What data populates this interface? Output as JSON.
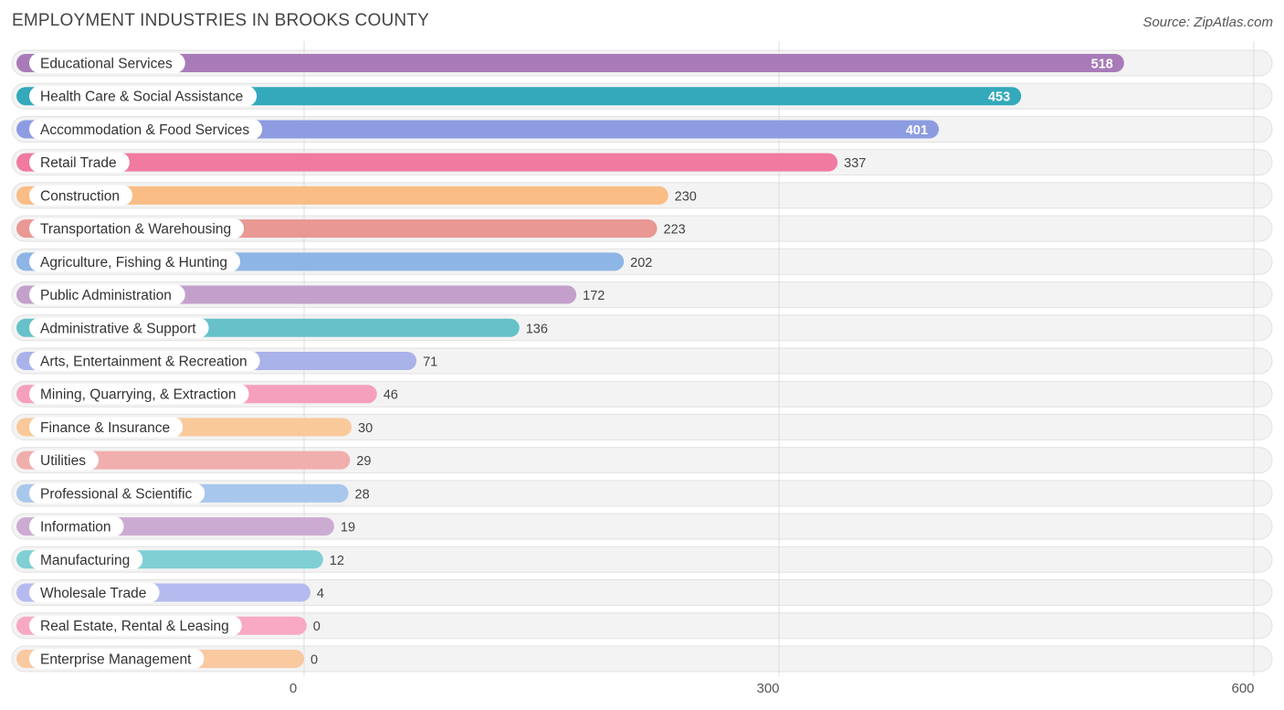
{
  "header": {
    "title": "EMPLOYMENT INDUSTRIES IN BROOKS COUNTY",
    "source": "Source: ZipAtlas.com"
  },
  "chart_data": {
    "type": "bar",
    "orientation": "horizontal",
    "title": "EMPLOYMENT INDUSTRIES IN BROOKS COUNTY",
    "xlabel": "",
    "ylabel": "",
    "xlim": [
      0,
      600
    ],
    "ticks": [
      0,
      300,
      600
    ],
    "tick_labels": [
      "0",
      "300",
      "600"
    ],
    "grid": true,
    "categories": [
      "Educational Services",
      "Health Care & Social Assistance",
      "Accommodation & Food Services",
      "Retail Trade",
      "Construction",
      "Transportation & Warehousing",
      "Agriculture, Fishing & Hunting",
      "Public Administration",
      "Administrative & Support",
      "Arts, Entertainment & Recreation",
      "Mining, Quarrying, & Extraction",
      "Finance & Insurance",
      "Utilities",
      "Professional & Scientific",
      "Information",
      "Manufacturing",
      "Wholesale Trade",
      "Real Estate, Rental & Leasing",
      "Enterprise Management"
    ],
    "values": [
      518,
      453,
      401,
      337,
      230,
      223,
      202,
      172,
      136,
      71,
      46,
      30,
      29,
      28,
      19,
      12,
      4,
      0,
      0
    ],
    "value_labels": [
      "518",
      "453",
      "401",
      "337",
      "230",
      "223",
      "202",
      "172",
      "136",
      "71",
      "46",
      "30",
      "29",
      "28",
      "19",
      "12",
      "4",
      "0",
      "0"
    ],
    "colors": [
      "#a87bb8",
      "#33a9bb",
      "#8d9ce0",
      "#f07aa0",
      "#f9bd85",
      "#e99893",
      "#8db5e5",
      "#c3a0cc",
      "#66c1c9",
      "#aab2ea",
      "#f5a0bd",
      "#f9c99a",
      "#f0aeac",
      "#a8c7ec",
      "#ccabd2",
      "#7fcfd4",
      "#b5bbee",
      "#f8a8c3",
      "#f9c9a0"
    ]
  }
}
